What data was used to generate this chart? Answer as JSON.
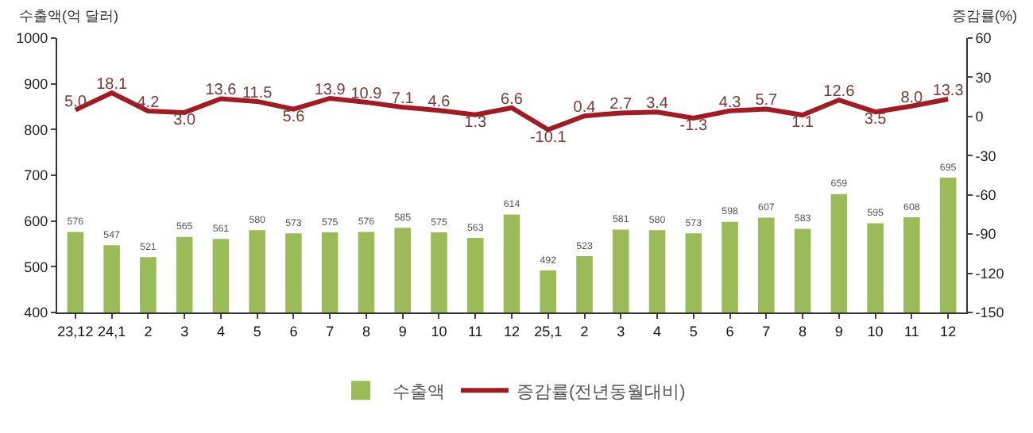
{
  "chart_data": {
    "type": "bar",
    "ylabel": "수출액(억 달러)",
    "y2label": "증감률(%)",
    "categories": [
      "23,12",
      "24,1",
      "2",
      "3",
      "4",
      "5",
      "6",
      "7",
      "8",
      "9",
      "10",
      "11",
      "12",
      "25,1",
      "2",
      "3",
      "4",
      "5",
      "6",
      "7",
      "8",
      "9",
      "10",
      "11",
      "12"
    ],
    "series": [
      {
        "name": "수출액",
        "color": "#9bbb59",
        "values": [
          576,
          547,
          521,
          565,
          561,
          580,
          573,
          575,
          576,
          585,
          575,
          563,
          614,
          492,
          523,
          581,
          580,
          573,
          598,
          607,
          583,
          659,
          595,
          608,
          695
        ]
      },
      {
        "name": "증감률(전년동월대비)",
        "type": "line",
        "axis": "y2",
        "color": "#a31a22",
        "values": [
          5.0,
          18.1,
          4.2,
          3.0,
          13.6,
          11.5,
          5.6,
          13.9,
          10.9,
          7.1,
          4.6,
          1.3,
          6.6,
          -10.1,
          0.4,
          2.7,
          3.4,
          -1.3,
          4.3,
          5.7,
          1.1,
          12.6,
          3.5,
          8.0,
          13.3
        ],
        "value_labels": [
          "5.0",
          "18.1",
          "4.2",
          "3.0",
          "13.6",
          "11.5",
          "5.6",
          "13.9",
          "10.9",
          "7.1",
          "4.6",
          "1.3",
          "6.6",
          "-10.1",
          "0.4",
          "2.7",
          "3.4",
          "-1.3",
          "4.3",
          "5.7",
          "1.1",
          "12.6",
          "3.5",
          "8.0",
          "13.3"
        ]
      }
    ],
    "ylim": [
      400,
      1000
    ],
    "yticks": [
      400,
      500,
      600,
      700,
      800,
      900,
      1000
    ],
    "y2lim": [
      -150,
      60
    ],
    "y2ticks": [
      -150,
      -120,
      -90,
      -60,
      -30,
      0,
      30,
      60
    ],
    "data_labels": true,
    "legend": "bottom",
    "grid": false,
    "marker": "none",
    "line_style": "solid"
  }
}
